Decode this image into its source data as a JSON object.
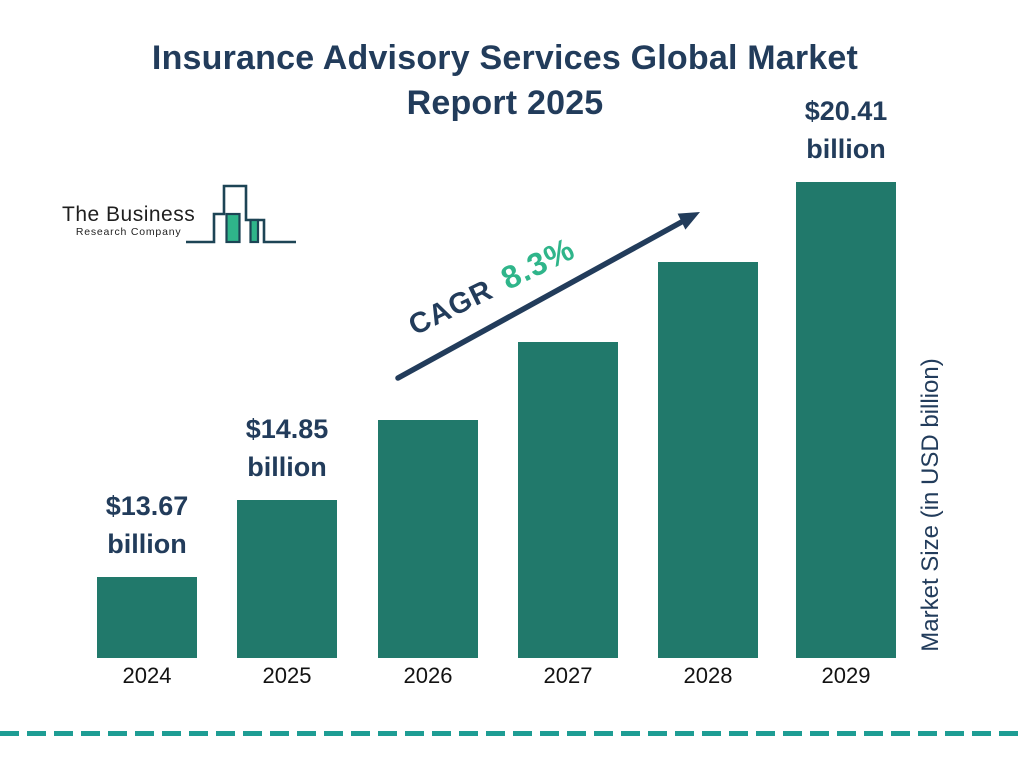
{
  "title": {
    "line1": "Insurance Advisory Services Global Market",
    "line2": "Report 2025"
  },
  "logo": {
    "line1": "The Business",
    "line2": "Research Company",
    "icon": "bar-chart-logo-icon"
  },
  "annotation": {
    "label": "CAGR",
    "value": "8.3%"
  },
  "axis": {
    "y_label": "Market Size (in USD billion)"
  },
  "colors": {
    "navy": "#223C5B",
    "bar": "#21796B",
    "green": "#2FB58A",
    "dashed_line": "#1E9D94",
    "year_label": "#121212"
  },
  "chart_data": {
    "type": "bar",
    "title": "Insurance Advisory Services Global Market Report 2025",
    "categories": [
      "2024",
      "2025",
      "2026",
      "2027",
      "2028",
      "2029"
    ],
    "values": [
      13.67,
      14.85,
      null,
      null,
      null,
      20.41
    ],
    "bar_value_labels": [
      {
        "index": 0,
        "line1": "$13.67",
        "line2": "billion"
      },
      {
        "index": 1,
        "line1": "$14.85",
        "line2": "billion"
      },
      {
        "index": 5,
        "line1": "$20.41",
        "line2": "billion"
      }
    ],
    "ylabel": "Market Size (in USD billion)",
    "xlabel": "",
    "annotation": "CAGR 8.3%",
    "legend": false,
    "grid": false,
    "bar_color": "#21796B"
  }
}
